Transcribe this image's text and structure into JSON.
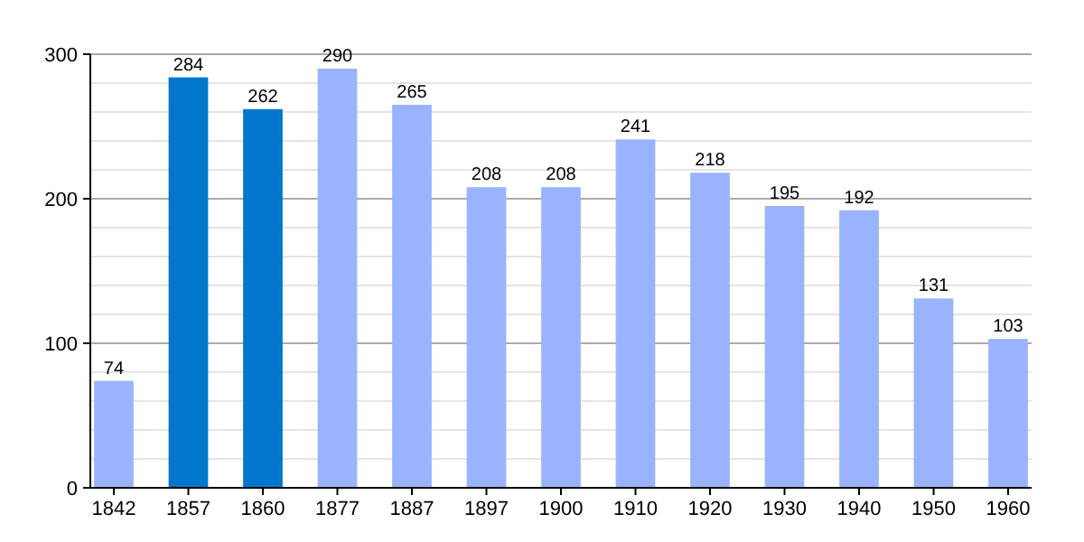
{
  "chart_data": {
    "type": "bar",
    "categories": [
      "1842",
      "1857",
      "1860",
      "1877",
      "1887",
      "1897",
      "1900",
      "1910",
      "1920",
      "1930",
      "1940",
      "1950",
      "1960"
    ],
    "values": [
      74,
      284,
      262,
      290,
      265,
      208,
      208,
      241,
      218,
      195,
      192,
      131,
      103
    ],
    "colors": [
      "#99b3ff",
      "#0077cc",
      "#0077cc",
      "#99b3ff",
      "#99b3ff",
      "#99b3ff",
      "#99b3ff",
      "#99b3ff",
      "#99b3ff",
      "#99b3ff",
      "#99b3ff",
      "#99b3ff",
      "#99b3ff"
    ],
    "ylim": [
      0,
      300
    ],
    "yticks": [
      0,
      {
        "value": 20,
        "label": null
      },
      {
        "value": 40,
        "label": null
      },
      {
        "value": 60,
        "label": null
      },
      {
        "value": 80,
        "label": null
      },
      100,
      {
        "value": 120,
        "label": null
      },
      {
        "value": 140,
        "label": null
      },
      {
        "value": 160,
        "label": null
      },
      {
        "value": 180,
        "label": null
      },
      200,
      {
        "value": 220,
        "label": null
      },
      {
        "value": 240,
        "label": null
      },
      {
        "value": 260,
        "label": null
      },
      {
        "value": 280,
        "label": null
      },
      300
    ],
    "grid": true,
    "data_labels": true
  }
}
